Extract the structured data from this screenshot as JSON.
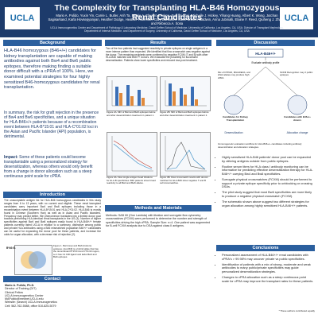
{
  "header": {
    "title": "The Complexity for Transplanting HLA-B46 Homozygous Renal Candidates",
    "authors": "Mario A. Pulido, Yuxin Yin, Carrie L. Butler, Anh Ta, Nwaje A. Ehwero-Ehakpe, Sun Mi Choi, Michelle J. Hickey, Yihang Huang, Albert K. Wong, Jutchan Sagisarkand, Karla Hovsepyanyan, Heather Dodge, Heather Robinson, Gary Barbattini, Suzie Brosen-Baldwin, Anna Jubinalli, Elaine F. Reed, Qiuheng J. Zhang, and Rebecca A. Sosa",
    "affiliations": "UCLA Immunogenetics Center and Department of Pathology & Laboratory Medicine, David Geffen School of Medicine, University of California, Los Angeles, CA, USA; Division of Transplant Nephrology, Department of Internal Medicine, and Department of Surgery, University of California, David Geffen School of Medicine, Los Angeles, CA, USA",
    "logo_left": "UCLA",
    "logo_right": "UCLA"
  },
  "background": {
    "heading": "Background",
    "lead": "HLA-B46 homozygous (B46+/+) candidates for kidney transplantation are capable of making antibodies against both Bw4 and Bw6 public epitopes, therefore making finding a suitable donor difficult with a cPRA of 100%. Here, we examined potential strategies for four highly sensitized B46-homozygous candidates for renal transplantation.",
    "summary": "In summary, the risk for graft rejection in the presence of Bw4 and Bw6 specificities, and a unique situation for HLA-B46+/+ patients because of a recombination event between HLA-B*15:01 and HLA-C*01:02 loci in the Asian and Pacific Islander (API) population, is detrimental.",
    "impact_label": "Impact:",
    "impact": "Some of these patients could become transplantable using a personalized strategy for desensitization, whereas others would only benefit from a change in donor allocation such as a steep continuous point scale for cPRA."
  },
  "introduction": {
    "heading": "Introduction",
    "text": "The unacceptable antigen list for HLA-B46 homozygous candidates in this study ranges from 6 to 13 years, with no current and eligible. These renal transplant candidates carry important Bw4 and Bw6 epitopes including those in a recombination event between HLA-B*15:01 and HLA-C*01:02. HLA-B46 is mostly found in Chinese (Southern Han) as well as in Asian and Pacific Islanders. Frequency may predict better. We phenomenon translates into a limited donor pool towards preforming HLA-identical renal transplants in the US (3). Number of higher specificities against Bw4 and Bw6 epitopes easily found in HLA-B46+/+ female patients currently listed UCLA in relation to a summary, distinctive among public and private HLA antibodies using a B46 mismatched population B46+/+ candidates can be useful for expanding the donor pool for these patients, and increase the odds for organ allocation, with a decrease risk of rejection (2).",
    "figure_label": "B*46:01",
    "figure_caption": "Figure 1. Bw4 (top) and Bw6 (bottom) epitopes. HLA-B46 is a hybrid allele that has the recombinant B*15:01 and C*01:02 region, so it has C1 KIR ligand and lacks Bw4 and Bw6 epitopes."
  },
  "contact": {
    "heading": "Contact",
    "lines": [
      "Mario A. Pulido, Ph.D.",
      "Director of Training (DIT)",
      "Clinical Fellow",
      "UCLA Immunogenetics Center",
      "MAPulido@mednet.UCLA.edu",
      "Website: (search) UCLA Immunogenetics",
      "Cell: 562-762-5588, office 510-825-5079"
    ]
  },
  "results": {
    "heading": "Results",
    "text": "Two of the four patients had suggested reactivity to private epitopes on single antigens in a more intense pattern than expected. We identified that flow crossmatch was negative against the donor. The remaining recipients were confirmed by negative FCXM (T and B) with other HLA-B46 matched and B46+/+ donors. We evaluated the possibility for successful desensitization. Patients show lower specificities and reduced loss post treatment.",
    "figures": [
      {
        "caption": "Figure 2A. MFI of Bw4 and Bw6 epitopes before and after desensitization treatment in patient 1."
      },
      {
        "caption": "Figure 2B. MFI of Bw4 and Bw6 epitopes before and after desensitization treatment in patient 2."
      },
      {
        "caption": "Figure 3A. Flow single antigen bead titrations for HLA-B specificities: B46 patients show broad reactivity to all Bw4 and Bw6 alleles."
      },
      {
        "caption": "Figure 3B. Flow crossmatch results with donors matched for HLA-B46 show negative T and B cell crossmatches."
      }
    ]
  },
  "methods": {
    "heading": "Methods and Materials",
    "text": "Methods: SAB IIII (One Lambda) with titration and surrogate flow cytometry crossmatches (FCXM) were performed to determine the number and strength of specificities driving the high cPRA. Sample Size: n=4. One patient was augmented for B-cell FCXM analysis due to DSA against class II antigens."
  },
  "discussion": {
    "heading": "Discussion",
    "diagram": {
      "top": "HLA-B46+/+",
      "left": "Candidates for Kidney Transplantation",
      "right": "Candidates with B46+/+ donors",
      "center": "Evaluate antibody profile",
      "left_note": "Mix of DTPAD, MGGREAS, and HSA/ alleles may produce high cPRA",
      "right_note": "SCFM Recognition may 2 public epitopes",
      "bottom_left": "Desensitization",
      "bottom_right": "Allocation change"
    },
    "caption": "Immunogenetic evaluation workflow for HLA-B46+/+ candidates including antibody desensitization and allocation strategies.",
    "bullets": [
      "Highly sensitized HLA-B46 patients' donor pool can be expanded by utilizing antigens outside from public epitopes.",
      "Routine serum titers for HLA class I antibody monitoring can be informative for predicting effective desensitization therapy for HLA-B46+/+ carrying Bw4 and Bw6 specificities.",
      "Surrogate physical crossmatches (FCXM) should be performed to support a private epitope specificity prior to unblocking or crossing DSAs.",
      "The pilot study suggest that most Bw6 specificities are more likely to produce a negative physical crossmatch (FCXM).",
      "The schematic shown above suggest two different strategies for organ allocation among highly sensitized HLA-B46+/+ patients."
    ]
  },
  "conclusions": {
    "heading": "Conclusions",
    "bullets": [
      "Personalized assessment of HLA-B46+/+ renal candidates with cPRA's > 99.98% may uncover private vs public specificities.",
      "Identification of patients with a mix of strong, moderate and weak antibodies to many public/private specificities may guide personalized desensitization strategies.",
      "Changes to cPRA allocation such as a steep continuous point scale for cPRA may improve the transplant rates for these patients."
    ],
    "footnote": "* These authors contributed equally"
  }
}
